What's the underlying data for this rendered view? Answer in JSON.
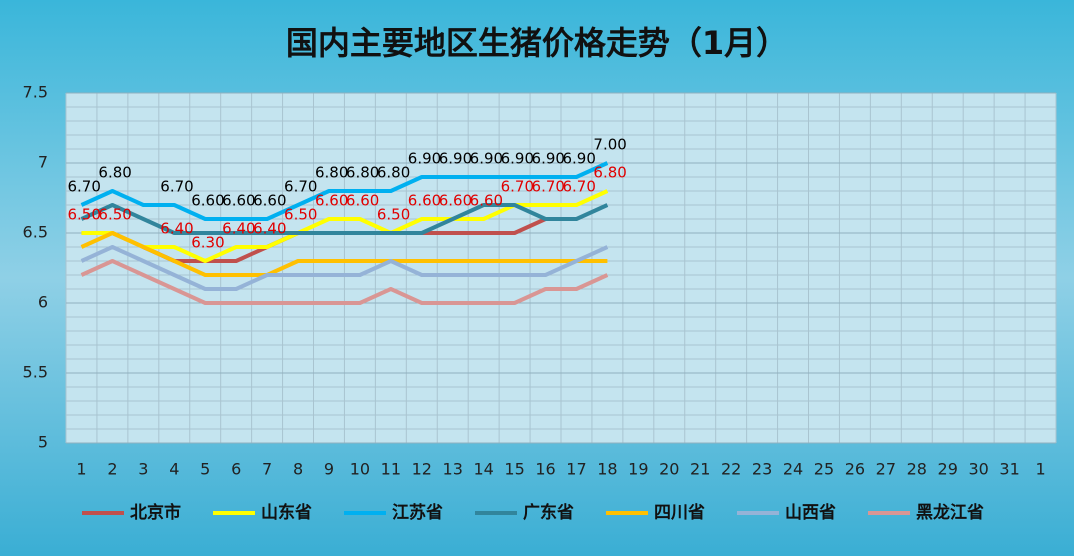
{
  "chart_data": {
    "type": "line",
    "title": "国内主要地区生猪价格走势（1月）",
    "categories": [
      "1",
      "2",
      "3",
      "4",
      "5",
      "6",
      "7",
      "8",
      "9",
      "10",
      "11",
      "12",
      "13",
      "14",
      "15",
      "16",
      "17",
      "18",
      "19",
      "20",
      "21",
      "22",
      "23",
      "24",
      "25",
      "26",
      "27",
      "28",
      "29",
      "30",
      "31",
      "1"
    ],
    "ylim": [
      5,
      7.5
    ],
    "yticks": [
      5,
      5.5,
      6,
      6.5,
      7,
      7.5
    ],
    "grid": true,
    "legend": "bottom",
    "series": [
      {
        "name": "北京市",
        "color": "#c0504d",
        "values": [
          6.5,
          6.5,
          6.4,
          6.3,
          6.3,
          6.3,
          6.4,
          6.5,
          6.5,
          6.5,
          6.5,
          6.5,
          6.5,
          6.5,
          6.5,
          6.6,
          null,
          null,
          null,
          null,
          null,
          null,
          null,
          null,
          null,
          null,
          null,
          null,
          null,
          null,
          null,
          null
        ]
      },
      {
        "name": "山东省",
        "color": "#ffff00",
        "label_color": "#e00000",
        "values": [
          6.5,
          6.5,
          6.4,
          6.4,
          6.3,
          6.4,
          6.4,
          6.5,
          6.6,
          6.6,
          6.5,
          6.6,
          6.6,
          6.6,
          6.7,
          6.7,
          6.7,
          6.8,
          null,
          null,
          null,
          null,
          null,
          null,
          null,
          null,
          null,
          null,
          null,
          null,
          null,
          null
        ],
        "value_labels": [
          "6.50",
          "6.50",
          null,
          "6.40",
          "6.30",
          "6.40",
          "6.40",
          "6.50",
          "6.60",
          "6.60",
          "6.50",
          "6.60",
          "6.60",
          "6.60",
          "6.70",
          "6.70",
          "6.70",
          "6.80",
          null,
          null,
          null,
          null,
          null,
          null,
          null,
          null,
          null,
          null,
          null,
          null,
          null,
          null
        ]
      },
      {
        "name": "江苏省",
        "color": "#00b0f0",
        "label_color": "#000000",
        "values": [
          6.7,
          6.8,
          6.7,
          6.7,
          6.6,
          6.6,
          6.6,
          6.7,
          6.8,
          6.8,
          6.8,
          6.9,
          6.9,
          6.9,
          6.9,
          6.9,
          6.9,
          7.0,
          null,
          null,
          null,
          null,
          null,
          null,
          null,
          null,
          null,
          null,
          null,
          null,
          null,
          null
        ],
        "value_labels": [
          "6.70",
          "6.80",
          null,
          "6.70",
          "6.60",
          "6.60",
          "6.60",
          "6.70",
          "6.80",
          "6.80",
          "6.80",
          "6.90",
          "6.90",
          "6.90",
          "6.90",
          "6.90",
          "6.90",
          "7.00",
          null,
          null,
          null,
          null,
          null,
          null,
          null,
          null,
          null,
          null,
          null,
          null,
          null,
          null
        ]
      },
      {
        "name": "广东省",
        "color": "#31859c",
        "values": [
          6.6,
          6.7,
          6.6,
          6.5,
          6.5,
          6.5,
          6.5,
          6.5,
          6.5,
          6.5,
          6.5,
          6.5,
          6.6,
          6.7,
          6.7,
          6.6,
          6.6,
          6.7,
          null,
          null,
          null,
          null,
          null,
          null,
          null,
          null,
          null,
          null,
          null,
          null,
          null,
          null
        ]
      },
      {
        "name": "四川省",
        "color": "#ffc000",
        "values": [
          6.4,
          6.5,
          6.4,
          6.3,
          6.2,
          6.2,
          6.2,
          6.3,
          6.3,
          6.3,
          6.3,
          6.3,
          6.3,
          6.3,
          6.3,
          6.3,
          6.3,
          6.3,
          null,
          null,
          null,
          null,
          null,
          null,
          null,
          null,
          null,
          null,
          null,
          null,
          null,
          null
        ]
      },
      {
        "name": "山西省",
        "color": "#95b3d7",
        "values": [
          6.3,
          6.4,
          6.3,
          6.2,
          6.1,
          6.1,
          6.2,
          6.2,
          6.2,
          6.2,
          6.3,
          6.2,
          6.2,
          6.2,
          6.2,
          6.2,
          6.3,
          6.4,
          null,
          null,
          null,
          null,
          null,
          null,
          null,
          null,
          null,
          null,
          null,
          null,
          null,
          null
        ]
      },
      {
        "name": "黑龙江省",
        "color": "#d99694",
        "values": [
          6.2,
          6.3,
          6.2,
          6.1,
          6.0,
          6.0,
          6.0,
          6.0,
          6.0,
          6.0,
          6.1,
          6.0,
          6.0,
          6.0,
          6.0,
          6.1,
          6.1,
          6.2,
          null,
          null,
          null,
          null,
          null,
          null,
          null,
          null,
          null,
          null,
          null,
          null,
          null,
          null
        ]
      }
    ]
  }
}
